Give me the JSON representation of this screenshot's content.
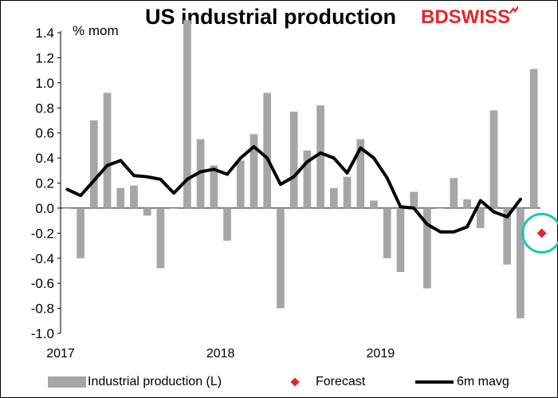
{
  "header": {
    "title": "US industrial production",
    "unit_label": "% mom",
    "logo_text_a": "BD",
    "logo_text_b": "SWISS"
  },
  "legend": {
    "bars_label": "Industrial production (L)",
    "forecast_label": "Forecast",
    "line_label": "6m mavg"
  },
  "colors": {
    "bars": "#a6a6a6",
    "line": "#000000",
    "forecast": "#e3262b",
    "highlight_ring": "#1cc6b6"
  },
  "chart_data": {
    "type": "bar",
    "title": "US industrial production",
    "ylabel": "% mom",
    "ylim": [
      -1.0,
      1.4
    ],
    "yticks": [
      -1.0,
      -0.8,
      -0.6,
      -0.4,
      -0.2,
      0.0,
      0.2,
      0.4,
      0.6,
      0.8,
      1.0,
      1.2,
      1.4
    ],
    "ytick_labels": [
      "-1.0",
      "-0.8",
      "-0.6",
      "-0.4",
      "-0.2",
      "0.0",
      "0.2",
      "0.4",
      "0.6",
      "0.8",
      "1.0",
      "1.2",
      "1.4"
    ],
    "xtick_labels": [
      {
        "label": "2017",
        "index": 0
      },
      {
        "label": "2018",
        "index": 12
      },
      {
        "label": "2019",
        "index": 24
      }
    ],
    "categories": [
      "2017-01",
      "2017-02",
      "2017-03",
      "2017-04",
      "2017-05",
      "2017-06",
      "2017-07",
      "2017-08",
      "2017-09",
      "2017-10",
      "2017-11",
      "2017-12",
      "2018-01",
      "2018-02",
      "2018-03",
      "2018-04",
      "2018-05",
      "2018-06",
      "2018-07",
      "2018-08",
      "2018-09",
      "2018-10",
      "2018-11",
      "2018-12",
      "2019-01",
      "2019-02",
      "2019-03",
      "2019-04",
      "2019-05",
      "2019-06",
      "2019-07",
      "2019-08",
      "2019-09",
      "2019-10",
      "2019-11",
      "2019-12"
    ],
    "series": [
      {
        "name": "Industrial production (L)",
        "kind": "bar",
        "values": [
          0.0,
          -0.4,
          0.7,
          0.92,
          0.16,
          0.18,
          -0.06,
          -0.48,
          0.0,
          1.5,
          0.55,
          0.34,
          -0.26,
          0.38,
          0.59,
          0.92,
          -0.8,
          0.77,
          0.46,
          0.82,
          0.16,
          0.25,
          0.55,
          0.06,
          -0.4,
          -0.51,
          0.13,
          -0.64,
          0.0,
          0.24,
          0.07,
          -0.16,
          0.78,
          -0.45,
          -0.88,
          1.11
        ]
      },
      {
        "name": "6m mavg",
        "kind": "line",
        "values": [
          0.15,
          0.1,
          0.22,
          0.34,
          0.38,
          0.26,
          0.25,
          0.23,
          0.12,
          0.23,
          0.29,
          0.31,
          0.27,
          0.4,
          0.49,
          0.4,
          0.19,
          0.25,
          0.37,
          0.44,
          0.4,
          0.28,
          0.48,
          0.4,
          0.24,
          0.01,
          0.0,
          -0.13,
          -0.19,
          -0.19,
          -0.15,
          0.06,
          -0.03,
          -0.07,
          0.07,
          null
        ]
      },
      {
        "name": "Forecast",
        "kind": "marker",
        "values": [
          null,
          null,
          null,
          null,
          null,
          null,
          null,
          null,
          null,
          null,
          null,
          null,
          null,
          null,
          null,
          null,
          null,
          null,
          null,
          null,
          null,
          null,
          null,
          null,
          null,
          null,
          null,
          null,
          null,
          null,
          null,
          null,
          null,
          null,
          null,
          -0.2
        ]
      }
    ],
    "grid": false,
    "legend_position": "bottom"
  }
}
